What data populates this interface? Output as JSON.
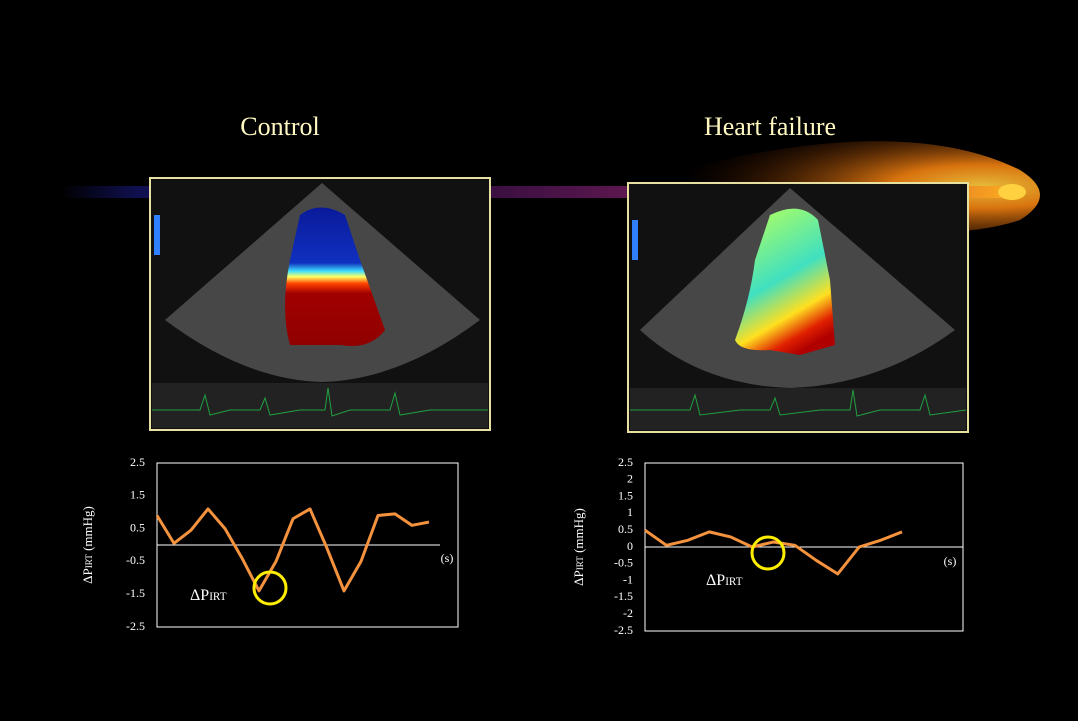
{
  "panels": [
    {
      "title": "Control"
    },
    {
      "title": "Heart failure"
    }
  ],
  "chart_data": [
    {
      "type": "line",
      "y_label": {
        "main": "ΔP",
        "sub": "IRT",
        "unit": " (mmHg)"
      },
      "x_label": "(s)",
      "annotation": {
        "main": "ΔP",
        "sub": "IRT"
      },
      "categories": [
        null,
        null,
        null,
        null,
        null,
        null,
        null,
        null,
        null,
        null,
        null,
        null,
        null,
        null,
        null,
        null,
        null
      ],
      "values": [
        0.9,
        0.05,
        0.45,
        1.1,
        0.5,
        -0.4,
        -1.4,
        -0.5,
        0.8,
        1.1,
        -0.1,
        -1.4,
        -0.5,
        0.9,
        0.95,
        0.6,
        0.7
      ],
      "color": "#f5923e",
      "ylim": [
        -2.5,
        2.5
      ],
      "yticks": [
        2.5,
        1.5,
        0.5,
        -0.5,
        -1.5,
        -2.5
      ]
    },
    {
      "type": "line",
      "y_label": {
        "main": "ΔP",
        "sub": "IRT",
        "unit": " (mmHg)"
      },
      "x_label": "(s)",
      "annotation": {
        "main": "ΔP",
        "sub": "IRT"
      },
      "categories": [
        null,
        null,
        null,
        null,
        null,
        null,
        null,
        null,
        null,
        null,
        null,
        null,
        null
      ],
      "values": [
        0.5,
        0.05,
        0.2,
        0.45,
        0.3,
        0.0,
        0.15,
        0.05,
        -0.4,
        -0.8,
        0.0,
        0.2,
        0.45
      ],
      "color": "#f5923e",
      "ylim": [
        -2.5,
        2.5
      ],
      "yticks": [
        2.5,
        2,
        1.5,
        1,
        0.5,
        0,
        -0.5,
        -1,
        -1.5,
        -2,
        -2.5
      ]
    }
  ]
}
